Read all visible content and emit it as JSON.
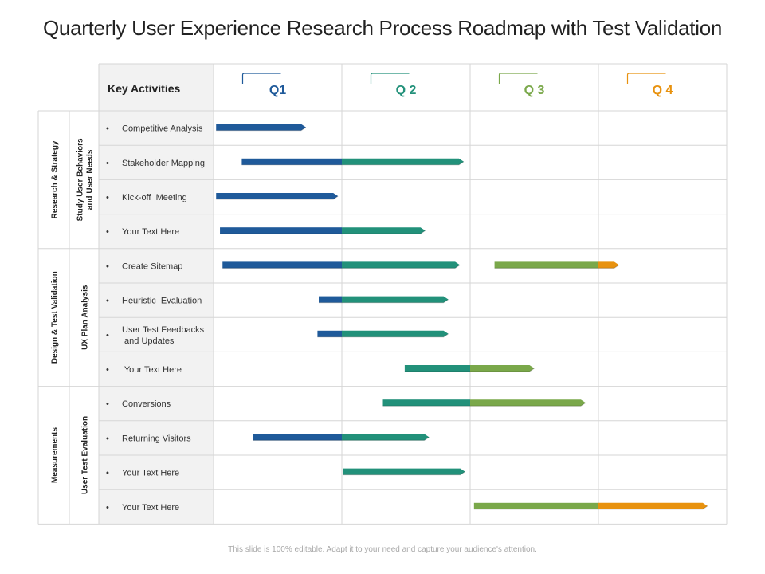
{
  "title": "Quarterly User Experience Research Process Roadmap with Test Validation",
  "footer": "This slide is 100% editable. Adapt it to your need and capture your audience's attention.",
  "header": {
    "key_activities": "Key Activities"
  },
  "colors": {
    "q1": "#1f5a9a",
    "q2": "#22917a",
    "q3": "#7aa84a",
    "q4": "#e8920f",
    "grid": "#d6d6d6",
    "label_bg": "#f2f2f2"
  },
  "quarters": [
    {
      "label": "Q1",
      "color": "#1f5a9a"
    },
    {
      "label": "Q 2",
      "color": "#22917a"
    },
    {
      "label": "Q 3",
      "color": "#7aa84a"
    },
    {
      "label": "Q 4",
      "color": "#e8920f"
    }
  ],
  "groups": [
    {
      "phase": "Research & Strategy",
      "sub": [
        "Study User Behaviors",
        "and User Needs"
      ],
      "rows": [
        0,
        3
      ]
    },
    {
      "phase": "Design & Test Validation",
      "sub": [
        "UX Plan Analysis"
      ],
      "rows": [
        4,
        7
      ]
    },
    {
      "phase": "Measurements",
      "sub": [
        "User Test Evaluation"
      ],
      "rows": [
        8,
        11
      ]
    }
  ],
  "chart_data": {
    "type": "gantt",
    "unit": "quarter",
    "range": [
      0,
      4
    ],
    "activities": [
      {
        "label": [
          "Competitive Analysis"
        ],
        "start": 0.02,
        "end": 0.72
      },
      {
        "label": [
          "Stakeholder Mapping"
        ],
        "start": 0.22,
        "end": 1.95
      },
      {
        "label": [
          "Kick-off  Meeting"
        ],
        "start": 0.02,
        "end": 0.97
      },
      {
        "label": [
          "Your Text Here"
        ],
        "start": 0.05,
        "end": 1.65
      },
      {
        "label": [
          "Create Sitemap"
        ],
        "start": 0.07,
        "end": 1.92,
        "extra": {
          "start": 2.19,
          "end": 3.16
        }
      },
      {
        "label": [
          "Heuristic  Evaluation"
        ],
        "start": 0.82,
        "end": 1.83
      },
      {
        "label": [
          "User Test Feedbacks",
          " and Updates"
        ],
        "start": 0.81,
        "end": 1.83
      },
      {
        "label": [
          " Your Text Here"
        ],
        "start": 1.49,
        "end": 2.5
      },
      {
        "label": [
          "Conversions"
        ],
        "start": 1.32,
        "end": 2.9
      },
      {
        "label": [
          "Returning Visitors"
        ],
        "start": 0.31,
        "end": 1.68
      },
      {
        "label": [
          "Your Text Here"
        ],
        "start": 1.01,
        "end": 1.96
      },
      {
        "label": [
          "Your Text Here"
        ],
        "start": 2.03,
        "end": 3.85
      }
    ]
  }
}
